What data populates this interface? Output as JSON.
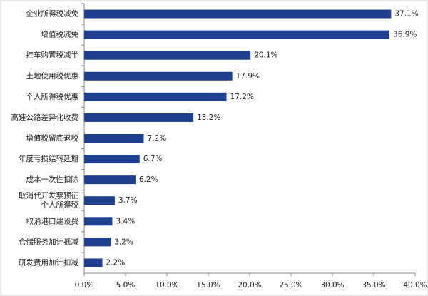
{
  "chart_data": {
    "type": "bar",
    "orientation": "horizontal",
    "categories": [
      "企业所得税减免",
      "增值税减免",
      "挂车购置税减半",
      "土地使用税优惠",
      "个人所得税优惠",
      "高速公路差异化收费",
      "增值税留底退税",
      "年度亏损结转延期",
      "成本一次性扣除",
      "取消代开发票预征\n个人所得税",
      "取消港口建设费",
      "仓储服务加计抵减",
      "研发费用加计扣减"
    ],
    "values": [
      37.1,
      36.9,
      20.1,
      17.9,
      17.2,
      13.2,
      7.2,
      6.7,
      6.2,
      3.7,
      3.4,
      3.2,
      2.2
    ],
    "value_labels": [
      "37.1%",
      "36.9%",
      "20.1%",
      "17.9%",
      "17.2%",
      "13.2%",
      "7.2%",
      "6.7%",
      "6.2%",
      "3.7%",
      "3.4%",
      "3.2%",
      "2.2%"
    ],
    "color": "#1f3f8f",
    "xlim": [
      0,
      40
    ],
    "xticks": [
      {
        "value": 0,
        "label": "0.0%"
      },
      {
        "value": 5,
        "label": "5.0%"
      },
      {
        "value": 10,
        "label": "10.0%"
      },
      {
        "value": 15,
        "label": "15.0%"
      },
      {
        "value": 20,
        "label": "20.0%"
      },
      {
        "value": 25,
        "label": "25.0%"
      },
      {
        "value": 30,
        "label": "30.0%"
      },
      {
        "value": 35,
        "label": "35.0%"
      },
      {
        "value": 40,
        "label": "40.0%"
      }
    ],
    "grid": false
  }
}
